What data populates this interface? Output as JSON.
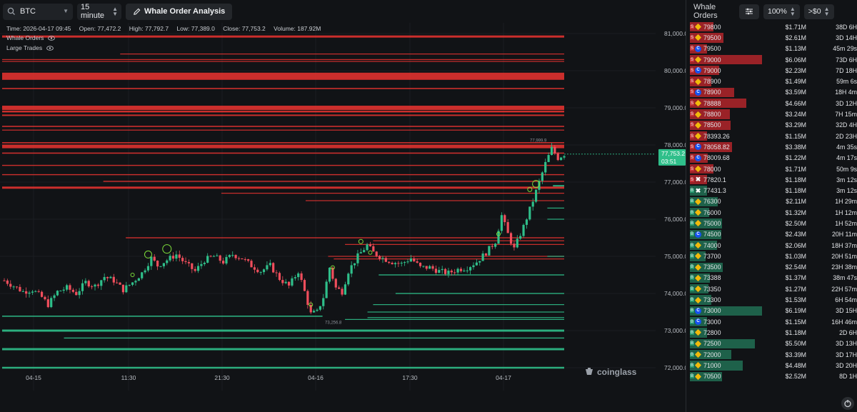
{
  "toolbar": {
    "symbol": "BTC",
    "interval": "15 minute",
    "analysis_label": "Whale Order Analysis"
  },
  "info": {
    "time": "Time: 2026-04-17 09:45",
    "open": "Open: 77,472.2",
    "high": "High: 77,792.7",
    "low": "Low: 77,389.0",
    "close": "Close: 77,753.2",
    "volume": "Volume: 187.92M"
  },
  "legend": {
    "whale_orders": "Whale Orders",
    "large_trades": "Large Trades"
  },
  "price_axis": [
    "81,000.0",
    "80,000.0",
    "79,000.0",
    "78,000.0",
    "77,000.0",
    "76,000.0",
    "75,000.0",
    "74,000.0",
    "73,000.0",
    "72,000.0"
  ],
  "time_axis": [
    "04-15",
    "11:30",
    "21:30",
    "04-16",
    "17:30",
    "04-17"
  ],
  "current_price": {
    "price": "77,753.2",
    "countdown": "03:51"
  },
  "annotations": {
    "high": "77,999.9",
    "low": "73,256.8"
  },
  "watermark": "coinglass",
  "colors": {
    "ask": "#e0322f",
    "bid": "#2fbf8a",
    "up": "#2fbf8a",
    "down": "#f04e5c",
    "binance": "#f0b90b",
    "coinbase": "#1652f0"
  },
  "panel": {
    "title": "Whale Orders",
    "filter_icon": "sliders-icon",
    "zoom": "100%",
    "min_value": ">$0"
  },
  "orders": [
    {
      "side": "S",
      "exchange": "binance",
      "price": "79800",
      "amount": "$1.71M",
      "age": "38D 6H",
      "fill": 0.28
    },
    {
      "side": "S",
      "exchange": "binance",
      "price": "79500",
      "amount": "$2.61M",
      "age": "3D 14H",
      "fill": 0.43
    },
    {
      "side": "S",
      "exchange": "coinbase",
      "price": "79500",
      "amount": "$1.13M",
      "age": "45m 29s",
      "fill": 0.19
    },
    {
      "side": "S",
      "exchange": "binance",
      "price": "79000",
      "amount": "$6.06M",
      "age": "73D 6H",
      "fill": 1.0
    },
    {
      "side": "S",
      "exchange": "coinbase",
      "price": "79000",
      "amount": "$2.23M",
      "age": "7D 18H",
      "fill": 0.37
    },
    {
      "side": "S",
      "exchange": "binance",
      "price": "78900",
      "amount": "$1.49M",
      "age": "59m 6s",
      "fill": 0.25
    },
    {
      "side": "S",
      "exchange": "coinbase",
      "price": "78900",
      "amount": "$3.59M",
      "age": "18H 4m",
      "fill": 0.59
    },
    {
      "side": "S",
      "exchange": "binance",
      "price": "78888",
      "amount": "$4.66M",
      "age": "3D 12H",
      "fill": 0.77
    },
    {
      "side": "S",
      "exchange": "binance",
      "price": "78800",
      "amount": "$3.24M",
      "age": "7H 15m",
      "fill": 0.53
    },
    {
      "side": "S",
      "exchange": "binance",
      "price": "78500",
      "amount": "$3.29M",
      "age": "32D 4H",
      "fill": 0.54
    },
    {
      "side": "S",
      "exchange": "binance",
      "price": "78393.26",
      "amount": "$1.15M",
      "age": "2D 23H",
      "fill": 0.19
    },
    {
      "side": "S",
      "exchange": "coinbase",
      "price": "78058.82",
      "amount": "$3.38M",
      "age": "4m 35s",
      "fill": 0.56
    },
    {
      "side": "S",
      "exchange": "coinbase",
      "price": "78009.68",
      "amount": "$1.22M",
      "age": "4m 17s",
      "fill": 0.2
    },
    {
      "side": "S",
      "exchange": "binance",
      "price": "78000",
      "amount": "$1.71M",
      "age": "50m 9s",
      "fill": 0.28
    },
    {
      "side": "S",
      "exchange": "okx",
      "price": "77820.1",
      "amount": "$1.18M",
      "age": "3m 12s",
      "fill": 0.19
    },
    {
      "side": "B",
      "exchange": "okx",
      "price": "77431.3",
      "amount": "$1.18M",
      "age": "3m 12s",
      "fill": 0.19
    },
    {
      "side": "B",
      "exchange": "binance",
      "price": "76300",
      "amount": "$2.11M",
      "age": "1H 29m",
      "fill": 0.35
    },
    {
      "side": "B",
      "exchange": "binance",
      "price": "76000",
      "amount": "$1.32M",
      "age": "1H 12m",
      "fill": 0.22
    },
    {
      "side": "B",
      "exchange": "binance",
      "price": "75000",
      "amount": "$2.50M",
      "age": "1H 52m",
      "fill": 0.41
    },
    {
      "side": "B",
      "exchange": "coinbase",
      "price": "74500",
      "amount": "$2.43M",
      "age": "20H 11m",
      "fill": 0.4
    },
    {
      "side": "B",
      "exchange": "binance",
      "price": "74000",
      "amount": "$2.06M",
      "age": "18H 37m",
      "fill": 0.34
    },
    {
      "side": "B",
      "exchange": "binance",
      "price": "73700",
      "amount": "$1.03M",
      "age": "20H 51m",
      "fill": 0.17
    },
    {
      "side": "B",
      "exchange": "binance",
      "price": "73500",
      "amount": "$2.54M",
      "age": "23H 38m",
      "fill": 0.42
    },
    {
      "side": "B",
      "exchange": "binance",
      "price": "73388",
      "amount": "$1.37M",
      "age": "38m 47s",
      "fill": 0.23
    },
    {
      "side": "B",
      "exchange": "binance",
      "price": "73350",
      "amount": "$1.27M",
      "age": "22H 57m",
      "fill": 0.21
    },
    {
      "side": "B",
      "exchange": "binance",
      "price": "73300",
      "amount": "$1.53M",
      "age": "6H 54m",
      "fill": 0.25
    },
    {
      "side": "B",
      "exchange": "coinbase",
      "price": "73000",
      "amount": "$6.19M",
      "age": "3D 15H",
      "fill": 1.0
    },
    {
      "side": "B",
      "exchange": "coinbase",
      "price": "73000",
      "amount": "$1.15M",
      "age": "16H 46m",
      "fill": 0.19
    },
    {
      "side": "B",
      "exchange": "binance",
      "price": "72800",
      "amount": "$1.18M",
      "age": "2D 6H",
      "fill": 0.19
    },
    {
      "side": "B",
      "exchange": "binance",
      "price": "72500",
      "amount": "$5.50M",
      "age": "3D 13H",
      "fill": 0.89
    },
    {
      "side": "B",
      "exchange": "binance",
      "price": "72000",
      "amount": "$3.39M",
      "age": "3D 17H",
      "fill": 0.55
    },
    {
      "side": "B",
      "exchange": "binance",
      "price": "71000",
      "amount": "$4.48M",
      "age": "3D 20H",
      "fill": 0.72
    },
    {
      "side": "B",
      "exchange": "binance",
      "price": "70500",
      "amount": "$2.52M",
      "age": "8D 1H",
      "fill": 0.41
    }
  ],
  "chart_data": {
    "type": "candlestick",
    "ylim": [
      71300,
      81400
    ],
    "yticks": [
      81000,
      80000,
      79000,
      78000,
      77000,
      76000,
      75000,
      74000,
      73000,
      72000
    ],
    "xticks": [
      "04-15",
      "11:30",
      "21:30",
      "04-16",
      "17:30",
      "04-17"
    ],
    "close_path": [
      [
        0,
        74350
      ],
      [
        3,
        74200
      ],
      [
        6,
        74050
      ],
      [
        9,
        74100
      ],
      [
        12,
        73900
      ],
      [
        14,
        73700
      ],
      [
        17,
        74050
      ],
      [
        20,
        74150
      ],
      [
        23,
        74000
      ],
      [
        26,
        74300
      ],
      [
        29,
        74200
      ],
      [
        32,
        74450
      ],
      [
        35,
        74350
      ],
      [
        38,
        74100
      ],
      [
        41,
        74300
      ],
      [
        44,
        74550
      ],
      [
        47,
        74950
      ],
      [
        49,
        74750
      ],
      [
        52,
        74900
      ],
      [
        55,
        75050
      ],
      [
        58,
        74800
      ],
      [
        61,
        74600
      ],
      [
        64,
        74900
      ],
      [
        67,
        75000
      ],
      [
        70,
        74850
      ],
      [
        73,
        75050
      ],
      [
        76,
        74950
      ],
      [
        79,
        74750
      ],
      [
        82,
        74600
      ],
      [
        85,
        74750
      ],
      [
        88,
        74400
      ],
      [
        91,
        74200
      ],
      [
        94,
        74600
      ],
      [
        96,
        74050
      ],
      [
        98,
        73450
      ],
      [
        100,
        73500
      ],
      [
        102,
        73900
      ],
      [
        104,
        74700
      ],
      [
        106,
        74150
      ],
      [
        108,
        74050
      ],
      [
        110,
        74600
      ],
      [
        113,
        75000
      ],
      [
        116,
        75300
      ],
      [
        118,
        75100
      ],
      [
        121,
        74950
      ],
      [
        124,
        74850
      ],
      [
        127,
        74800
      ],
      [
        130,
        74950
      ],
      [
        133,
        74700
      ],
      [
        136,
        74700
      ],
      [
        139,
        74600
      ],
      [
        142,
        74550
      ],
      [
        145,
        74650
      ],
      [
        148,
        74700
      ],
      [
        151,
        74850
      ],
      [
        154,
        75100
      ],
      [
        157,
        75400
      ],
      [
        159,
        76100
      ],
      [
        161,
        75600
      ],
      [
        163,
        75200
      ],
      [
        166,
        75800
      ],
      [
        169,
        76500
      ],
      [
        171,
        77000
      ],
      [
        173,
        77500
      ],
      [
        175,
        77900
      ],
      [
        177,
        77650
      ],
      [
        179,
        77753
      ]
    ],
    "asks": [
      {
        "price": 80920,
        "from": 0.0,
        "width": 3.0
      },
      {
        "price": 80450,
        "from": 0.21,
        "width": 1.2
      },
      {
        "price": 80300,
        "from": 0.0,
        "width": 1.2
      },
      {
        "price": 80250,
        "from": 0.0,
        "width": 1.2
      },
      {
        "price": 79850,
        "from": 0.0,
        "width": 10
      },
      {
        "price": 79520,
        "from": 0.0,
        "width": 1.6
      },
      {
        "price": 79000,
        "from": 0.0,
        "width": 6
      },
      {
        "price": 78900,
        "from": 0.0,
        "width": 2.5
      },
      {
        "price": 78800,
        "from": 0.0,
        "width": 2.0
      },
      {
        "price": 78500,
        "from": 0.0,
        "width": 1.6
      },
      {
        "price": 78400,
        "from": 0.0,
        "width": 1.2
      },
      {
        "price": 78060,
        "from": 0.0,
        "width": 1.6
      },
      {
        "price": 77960,
        "from": 0.0,
        "width": 5
      },
      {
        "price": 77780,
        "from": 0.0,
        "width": 1.6
      },
      {
        "price": 77450,
        "from": 0.0,
        "width": 1.4
      },
      {
        "price": 77200,
        "from": 0.0,
        "width": 1.4
      },
      {
        "price": 77020,
        "from": 0.18,
        "width": 1.4
      },
      {
        "price": 76850,
        "from": 0.0,
        "width": 3
      },
      {
        "price": 76700,
        "from": 0.39,
        "width": 1.2
      },
      {
        "price": 76500,
        "from": 0.54,
        "width": 1.2
      },
      {
        "price": 75500,
        "from": 0.22,
        "width": 1.4
      },
      {
        "price": 75420,
        "from": 0.66,
        "width": 1.2
      },
      {
        "price": 75320,
        "from": 0.61,
        "width": 1.2
      },
      {
        "price": 75000,
        "from": 0.58,
        "width": 1.2
      },
      {
        "price": 74930,
        "from": 0.59,
        "width": 1.2
      }
    ],
    "bids": [
      {
        "price": 76900,
        "from": 0.98,
        "to": 1.0,
        "width": 2
      },
      {
        "price": 76300,
        "from": 0.97,
        "to": 1.0,
        "width": 1.2
      },
      {
        "price": 76000,
        "from": 0.97,
        "to": 1.0,
        "width": 1.2
      },
      {
        "price": 75000,
        "from": 0.97,
        "to": 1.0,
        "width": 1.2
      },
      {
        "price": 74500,
        "from": 0.67,
        "to": 1.0,
        "width": 1.4
      },
      {
        "price": 74000,
        "from": 0.7,
        "to": 1.0,
        "width": 1.4
      },
      {
        "price": 73700,
        "from": 0.66,
        "to": 1.0,
        "width": 1.2
      },
      {
        "price": 73500,
        "from": 0.65,
        "to": 1.0,
        "width": 1.2
      },
      {
        "price": 73388,
        "from": 0.0,
        "to": 0.57,
        "width": 1.6
      },
      {
        "price": 73350,
        "from": 0.65,
        "to": 1.0,
        "width": 1.2
      },
      {
        "price": 73300,
        "from": 0.61,
        "to": 1.0,
        "width": 1.2
      },
      {
        "price": 73000,
        "from": 0.0,
        "to": 1.0,
        "width": 3
      },
      {
        "price": 72800,
        "from": 0.11,
        "to": 1.0,
        "width": 1.4
      },
      {
        "price": 72500,
        "from": 0.0,
        "to": 1.0,
        "width": 3
      },
      {
        "price": 72000,
        "from": 0.0,
        "to": 1.0,
        "width": 2.5
      }
    ],
    "large_trades": [
      {
        "i": 46,
        "price": 75050,
        "size": 5
      },
      {
        "i": 52,
        "price": 75200,
        "size": 6
      },
      {
        "i": 41,
        "price": 74500,
        "size": 2.5
      },
      {
        "i": 105,
        "price": 74700,
        "size": 2.5
      },
      {
        "i": 114,
        "price": 75400,
        "size": 3
      },
      {
        "i": 117,
        "price": 75100,
        "size": 2.5
      },
      {
        "i": 158,
        "price": 75600,
        "size": 2.5
      },
      {
        "i": 170,
        "price": 76950,
        "size": 5
      },
      {
        "i": 168,
        "price": 76800,
        "size": 3
      },
      {
        "i": 98,
        "price": 73700,
        "size": 2.5
      }
    ]
  }
}
